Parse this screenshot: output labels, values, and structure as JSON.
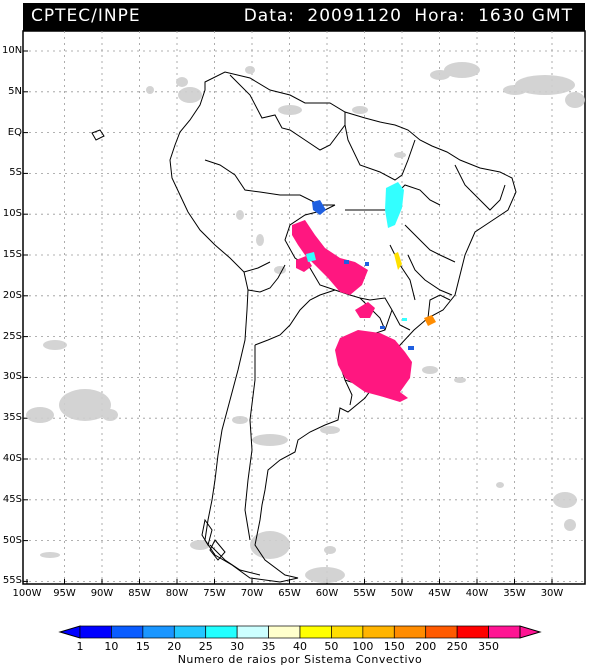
{
  "header": {
    "source": "CPTEC/INPE",
    "data_label": "Data:",
    "data_value": "20091120",
    "hora_label": "Hora:",
    "hora_value": "1630 GMT"
  },
  "axes": {
    "latitudes": [
      "10N",
      "5N",
      "EQ",
      "5S",
      "10S",
      "15S",
      "20S",
      "25S",
      "30S",
      "35S",
      "40S",
      "45S",
      "50S",
      "55S"
    ],
    "longitudes": [
      "100W",
      "95W",
      "90W",
      "85W",
      "80W",
      "75W",
      "70W",
      "65W",
      "60W",
      "55W",
      "50W",
      "45W",
      "40W",
      "35W",
      "30W"
    ]
  },
  "legend": {
    "title": "Numero de raios por Sistema Convectivo",
    "ticks": [
      "1",
      "10",
      "15",
      "20",
      "25",
      "30",
      "35",
      "40",
      "50",
      "100",
      "150",
      "200",
      "250",
      "350"
    ],
    "colors": [
      "#0000ff",
      "#0a5cff",
      "#1a96ff",
      "#22c8ff",
      "#22ffff",
      "#ccffff",
      "#ffffcc",
      "#ffff00",
      "#ffdd00",
      "#ffb400",
      "#ff8c00",
      "#ff5a00",
      "#ff0000",
      "#ff1493"
    ]
  },
  "colors": {
    "clouds": "#c8c8c8",
    "heavy": "#ff1780",
    "cyan": "#33ffff",
    "blue": "#1f5fe0",
    "yellow": "#ffe000",
    "orange": "#ff8c00"
  }
}
